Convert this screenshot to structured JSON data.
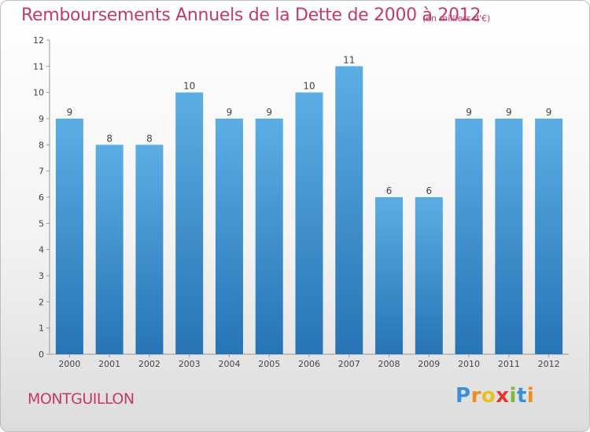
{
  "chart_data": {
    "type": "bar",
    "title": "Remboursements Annuels de la Dette de 2000 à 2012",
    "subtitle": "(en milliers d'€)",
    "categories": [
      "2000",
      "2001",
      "2002",
      "2003",
      "2004",
      "2005",
      "2006",
      "2007",
      "2008",
      "2009",
      "2010",
      "2011",
      "2012"
    ],
    "values": [
      9,
      8,
      8,
      10,
      9,
      9,
      10,
      11,
      6,
      6,
      9,
      9,
      9
    ],
    "ylim": [
      0,
      12
    ],
    "yticks": [
      0,
      1,
      2,
      3,
      4,
      5,
      6,
      7,
      8,
      9,
      10,
      11,
      12
    ],
    "grid": false,
    "xlabel": "",
    "ylabel": "",
    "bar_color_top": "#5dade5",
    "bar_color_bottom": "#2674b5"
  },
  "commune": "MONTGUILLON",
  "logo": {
    "letters": [
      {
        "char": "P",
        "color": "#3a8fd6"
      },
      {
        "char": "r",
        "color": "#f28a1d"
      },
      {
        "char": "o",
        "color": "#e8c21c"
      },
      {
        "char": "x",
        "color": "#e03a2e"
      },
      {
        "char": "i",
        "color": "#7cb83a"
      },
      {
        "char": "t",
        "color": "#3a8fd6"
      },
      {
        "char": "i",
        "color": "#f28a1d"
      }
    ]
  }
}
